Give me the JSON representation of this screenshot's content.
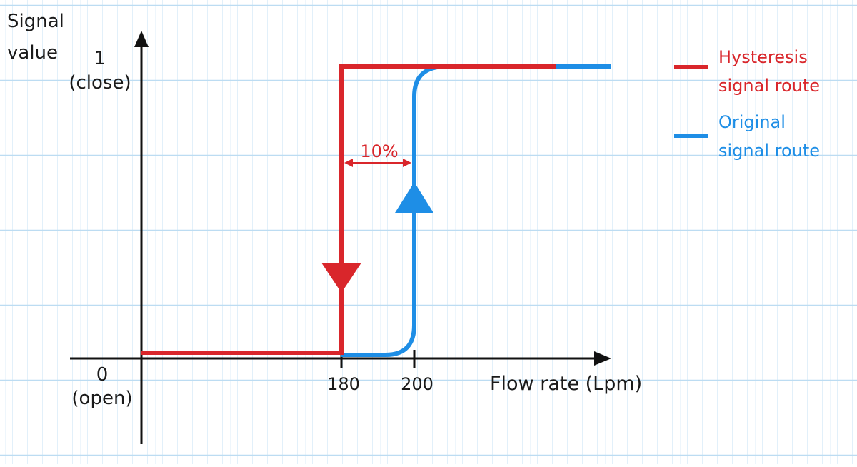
{
  "y_axis": {
    "label_lines": [
      "Signal",
      "value"
    ],
    "ticks": [
      {
        "number": "1",
        "note": "(close)"
      },
      {
        "number": "0",
        "note": "(open)"
      }
    ]
  },
  "x_axis": {
    "label": "Flow rate (Lpm)",
    "ticks": [
      "180",
      "200"
    ]
  },
  "annotation": "10%",
  "legend": [
    {
      "lines": [
        "Hysteresis",
        "signal route"
      ]
    },
    {
      "lines": [
        "Original",
        "signal route"
      ]
    }
  ]
}
